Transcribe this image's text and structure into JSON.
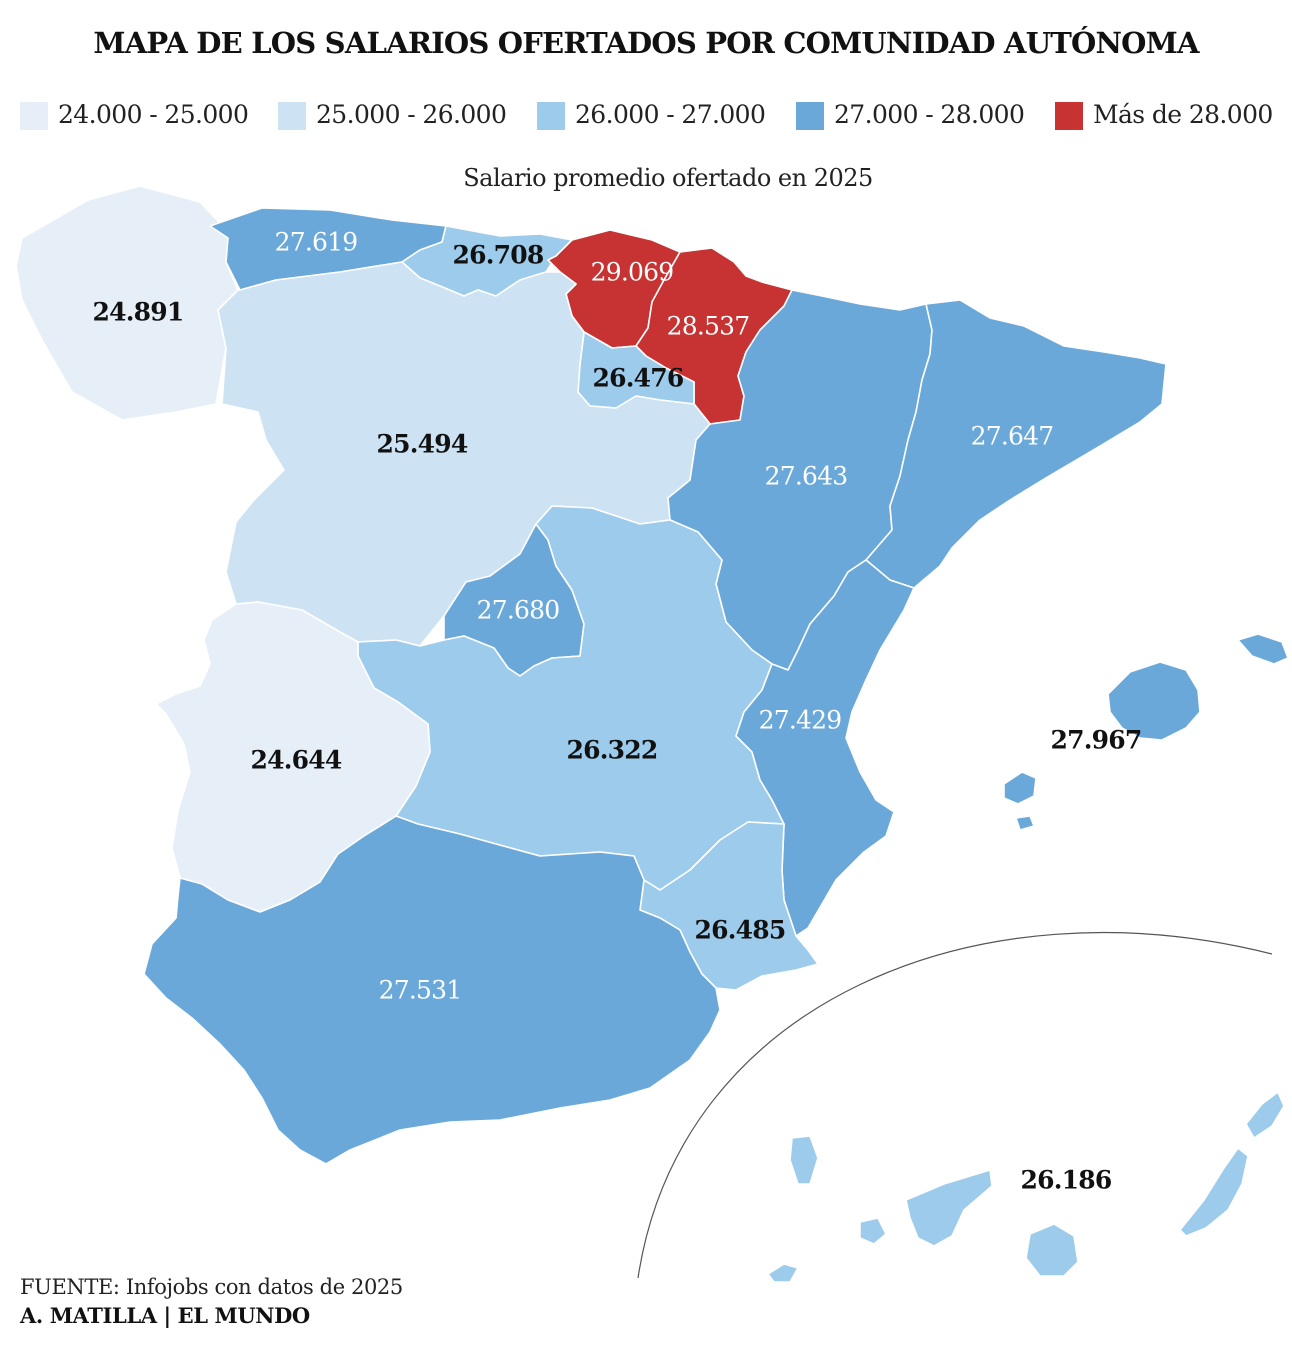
{
  "header": {
    "title": "MAPA DE LOS SALARIOS OFERTADOS POR COMUNIDAD AUTÓNOMA",
    "subtitle": "Salario promedio ofertado en 2025"
  },
  "legend": [
    {
      "label": "24.000 - 25.000",
      "color": "#e6eff8"
    },
    {
      "label": "25.000 - 26.000",
      "color": "#cde2f3"
    },
    {
      "label": "26.000 - 27.000",
      "color": "#9ccbec"
    },
    {
      "label": "27.000 - 28.000",
      "color": "#6aa8da"
    },
    {
      "label": "Más de 28.000",
      "color": "#c63332"
    }
  ],
  "regions": {
    "galicia": {
      "value": "24.891",
      "color": "#e6eff8"
    },
    "asturias": {
      "value": "27.619",
      "color": "#6aa8da"
    },
    "cantabria": {
      "value": "26.708",
      "color": "#9ccbec"
    },
    "pais_vasco": {
      "value": "29.069",
      "color": "#c63332"
    },
    "navarra": {
      "value": "28.537",
      "color": "#c63332"
    },
    "la_rioja": {
      "value": "26.476",
      "color": "#9ccbec"
    },
    "castilla_leon": {
      "value": "25.494",
      "color": "#cde2f3"
    },
    "aragon": {
      "value": "27.643",
      "color": "#6aa8da"
    },
    "cataluna": {
      "value": "27.647",
      "color": "#6aa8da"
    },
    "madrid": {
      "value": "27.680",
      "color": "#6aa8da"
    },
    "castilla_la_mancha": {
      "value": "26.322",
      "color": "#9ccbec"
    },
    "extremadura": {
      "value": "24.644",
      "color": "#e6eff8"
    },
    "valencia": {
      "value": "27.429",
      "color": "#6aa8da"
    },
    "baleares": {
      "value": "27.967",
      "color": "#6aa8da"
    },
    "murcia": {
      "value": "26.485",
      "color": "#9ccbec"
    },
    "andalucia": {
      "value": "27.531",
      "color": "#6aa8da"
    },
    "canarias": {
      "value": "26.186",
      "color": "#9ccbec"
    }
  },
  "footer": {
    "source": "FUENTE: Infojobs con datos de 2025",
    "credit": "A. MATILLA | EL MUNDO"
  }
}
